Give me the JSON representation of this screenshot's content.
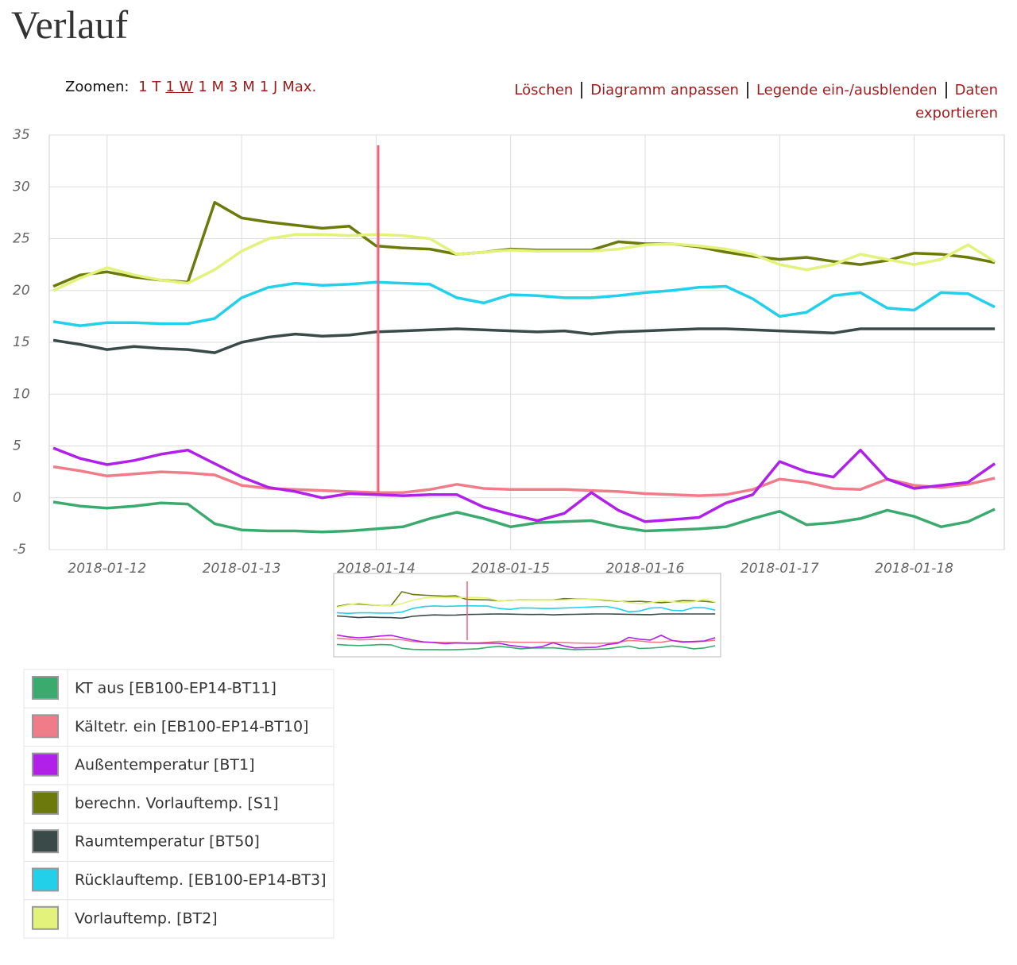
{
  "header": {
    "title": "Verlauf"
  },
  "toolbar": {
    "zoom_label": "Zoomen:",
    "zoom_options": [
      "1 T",
      "1 W",
      "1 M",
      "3 M",
      "1 J",
      "Max."
    ],
    "actions": [
      "Löschen",
      "Diagramm anpassen",
      "Legende ein-/ausblenden",
      "Daten exportieren"
    ]
  },
  "chart_data": {
    "type": "line",
    "x": [
      0.6,
      0.8,
      1.0,
      1.2,
      1.4,
      1.6,
      1.8,
      2.0,
      2.2,
      2.4,
      2.6,
      2.8,
      3.0,
      3.2,
      3.4,
      3.6,
      3.8,
      4.0,
      4.2,
      4.4,
      4.6,
      4.8,
      5.0,
      5.2,
      5.4,
      5.6,
      5.8,
      6.0,
      6.2,
      6.4,
      6.6,
      6.8,
      7.0,
      7.2,
      7.4,
      7.6
    ],
    "series": [
      {
        "name": "KT aus [EB100-EP14-BT11]",
        "color": "#3aaa6e",
        "values": [
          -0.4,
          -0.8,
          -1.0,
          -0.8,
          -0.5,
          -0.6,
          -2.5,
          -3.1,
          -3.2,
          -3.2,
          -3.3,
          -3.2,
          -3.0,
          -2.8,
          -2.0,
          -1.4,
          -2.0,
          -2.8,
          -2.4,
          -2.3,
          -2.2,
          -2.8,
          -3.2,
          -3.1,
          -3.0,
          -2.8,
          -2.0,
          -1.3,
          -2.6,
          -2.4,
          -2.0,
          -1.2,
          -1.8,
          -2.8,
          -2.3,
          -1.1
        ]
      },
      {
        "name": "Kältetr. ein [EB100-EP14-BT10]",
        "color": "#f07c8a",
        "values": [
          3.0,
          2.6,
          2.1,
          2.3,
          2.5,
          2.4,
          2.2,
          1.2,
          0.9,
          0.8,
          0.7,
          0.6,
          0.5,
          0.5,
          0.8,
          1.3,
          0.9,
          0.8,
          0.8,
          0.8,
          0.7,
          0.6,
          0.4,
          0.3,
          0.2,
          0.3,
          0.8,
          1.8,
          1.5,
          0.9,
          0.8,
          1.8,
          1.2,
          1.0,
          1.3,
          1.9
        ]
      },
      {
        "name": "Außentemperatur [BT1]",
        "color": "#b020e8",
        "values": [
          4.8,
          3.8,
          3.2,
          3.6,
          4.2,
          4.6,
          3.3,
          2.0,
          1.0,
          0.6,
          0.0,
          0.4,
          0.3,
          0.2,
          0.3,
          0.3,
          -0.9,
          -1.6,
          -2.2,
          -1.5,
          0.5,
          -1.2,
          -2.3,
          -2.1,
          -1.9,
          -0.5,
          0.3,
          3.5,
          2.5,
          2.0,
          4.6,
          1.8,
          0.9,
          1.2,
          1.5,
          3.3
        ]
      },
      {
        "name": "berechn. Vorlauftemp. [S1]",
        "color": "#6b7a0a",
        "values": [
          20.4,
          21.5,
          21.8,
          21.3,
          21.0,
          20.8,
          28.5,
          27.0,
          26.6,
          26.3,
          26.0,
          26.2,
          24.3,
          24.1,
          24.0,
          23.5,
          23.7,
          24.0,
          23.9,
          23.9,
          23.9,
          24.7,
          24.5,
          24.5,
          24.2,
          23.7,
          23.3,
          23.0,
          23.2,
          22.8,
          22.5,
          22.9,
          23.6,
          23.5,
          23.2,
          22.7
        ]
      },
      {
        "name": "Raumtemperatur [BT50]",
        "color": "#3a4a48",
        "values": [
          15.2,
          14.8,
          14.3,
          14.6,
          14.4,
          14.3,
          14.0,
          15.0,
          15.5,
          15.8,
          15.6,
          15.7,
          16.0,
          16.1,
          16.2,
          16.3,
          16.2,
          16.1,
          16.0,
          16.1,
          15.8,
          16.0,
          16.1,
          16.2,
          16.3,
          16.3,
          16.2,
          16.1,
          16.0,
          15.9,
          16.3,
          16.3,
          16.3,
          16.3,
          16.3,
          16.3
        ]
      },
      {
        "name": "Rücklauftemp. [EB100-EP14-BT3]",
        "color": "#22d0ea",
        "values": [
          17.0,
          16.6,
          16.9,
          16.9,
          16.8,
          16.8,
          17.3,
          19.3,
          20.3,
          20.7,
          20.5,
          20.6,
          20.8,
          20.7,
          20.6,
          19.3,
          18.8,
          19.6,
          19.5,
          19.3,
          19.3,
          19.5,
          19.8,
          20.0,
          20.3,
          20.4,
          19.2,
          17.5,
          17.9,
          19.5,
          19.8,
          18.3,
          18.1,
          19.8,
          19.7,
          18.4
        ]
      },
      {
        "name": "Vorlauftemp. [BT2]",
        "color": "#e2f27a",
        "values": [
          20.0,
          21.2,
          22.2,
          21.5,
          21.0,
          20.7,
          22.0,
          23.8,
          25.0,
          25.4,
          25.4,
          25.3,
          25.4,
          25.3,
          25.0,
          23.5,
          23.7,
          23.9,
          23.8,
          23.8,
          23.8,
          24.0,
          24.4,
          24.5,
          24.3,
          24.0,
          23.5,
          22.5,
          22.0,
          22.5,
          23.5,
          23.0,
          22.5,
          23.0,
          24.4,
          22.8
        ]
      }
    ],
    "xlim": [
      0.57,
      7.67
    ],
    "xticks": [
      {
        "value": 1,
        "label": "2018-01-12"
      },
      {
        "value": 2,
        "label": "2018-01-13"
      },
      {
        "value": 3,
        "label": "2018-01-14"
      },
      {
        "value": 4,
        "label": "2018-01-15"
      },
      {
        "value": 5,
        "label": "2018-01-16"
      },
      {
        "value": 6,
        "label": "2018-01-17"
      },
      {
        "value": 7,
        "label": "2018-01-18"
      }
    ],
    "ylim": [
      -5,
      35
    ],
    "yticks": [
      -5,
      0,
      5,
      10,
      15,
      20,
      25,
      30,
      35
    ],
    "grid": true
  }
}
